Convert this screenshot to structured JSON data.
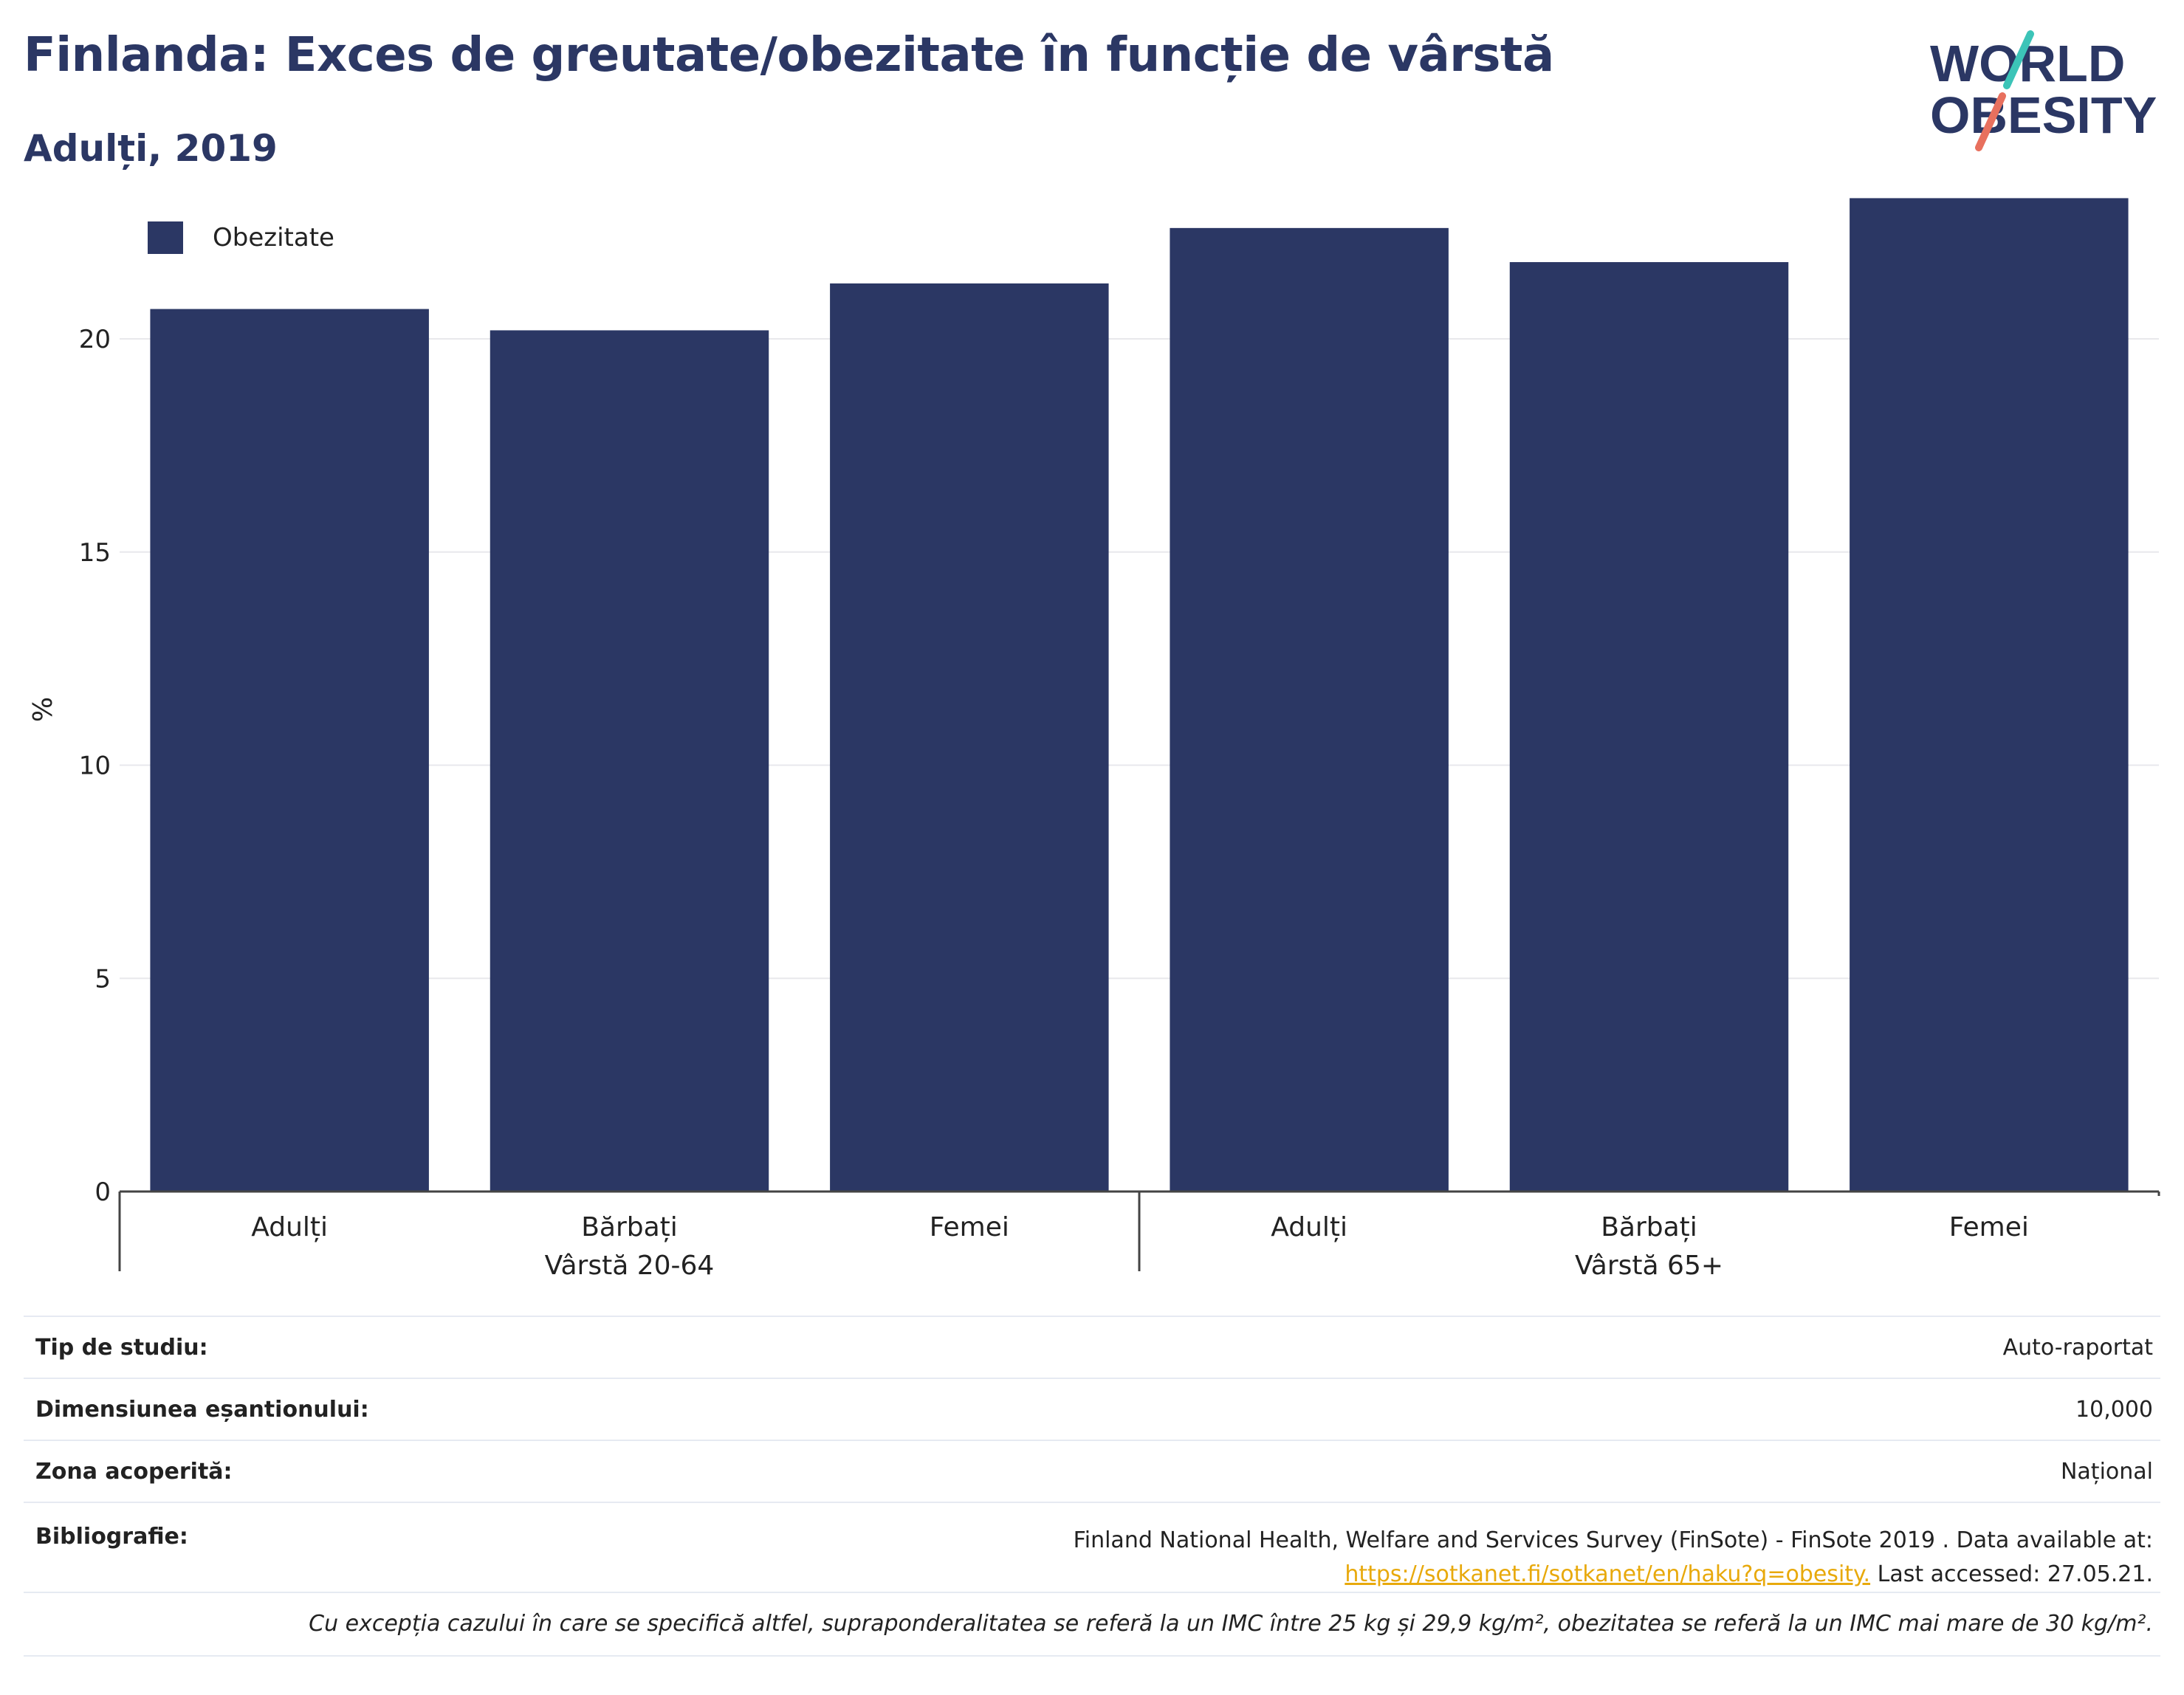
{
  "header": {
    "title": "Finlanda: Exces de greutate/obezitate în funcție de vârstă",
    "subtitle": "Adulți, 2019"
  },
  "logo": {
    "line1": "WORLD",
    "line2": "OBESITY",
    "slash_colors": [
      "#3cc4b8",
      "#e8705e"
    ]
  },
  "legend": {
    "label": "Obezitate",
    "color": "#2b3764"
  },
  "chart_data": {
    "type": "bar",
    "ylabel": "%",
    "ylim": [
      0,
      24
    ],
    "yticks": [
      0,
      5,
      10,
      15,
      20
    ],
    "grid": true,
    "legend_position": "top-left",
    "bar_color": "#2b3764",
    "categories": [
      "Adulți",
      "Bărbați",
      "Femei",
      "Adulți",
      "Bărbați",
      "Femei"
    ],
    "groups": [
      {
        "label": "Vârstă 20-64",
        "categories": [
          0,
          1,
          2
        ]
      },
      {
        "label": "Vârstă 65+",
        "categories": [
          3,
          4,
          5
        ]
      }
    ],
    "series": [
      {
        "name": "Obezitate",
        "values": [
          20.7,
          20.2,
          21.3,
          22.6,
          21.8,
          23.3
        ]
      }
    ]
  },
  "info": {
    "study_type_label": "Tip de studiu:",
    "study_type_value": "Auto-raportat",
    "sample_label": "Dimensiunea eșantionului:",
    "sample_value": "10,000",
    "coverage_label": "Zona acoperită:",
    "coverage_value": "Național",
    "bibliography_label": "Bibliografie:",
    "bibliography_line1": "Finland National Health, Welfare and Services Survey (FinSote) - FinSote 2019 . Data available at:",
    "bibliography_link": "https://sotkanet.fi/sotkanet/en/haku?q=obesity.",
    "bibliography_suffix": " Last accessed: 27.05.21.",
    "note": "Cu excepția cazului în care se specifică altfel, supraponderalitatea se referă la un IMC între 25 kg și 29,9 kg/m², obezitatea se referă la un IMC mai mare de 30 kg/m²."
  }
}
